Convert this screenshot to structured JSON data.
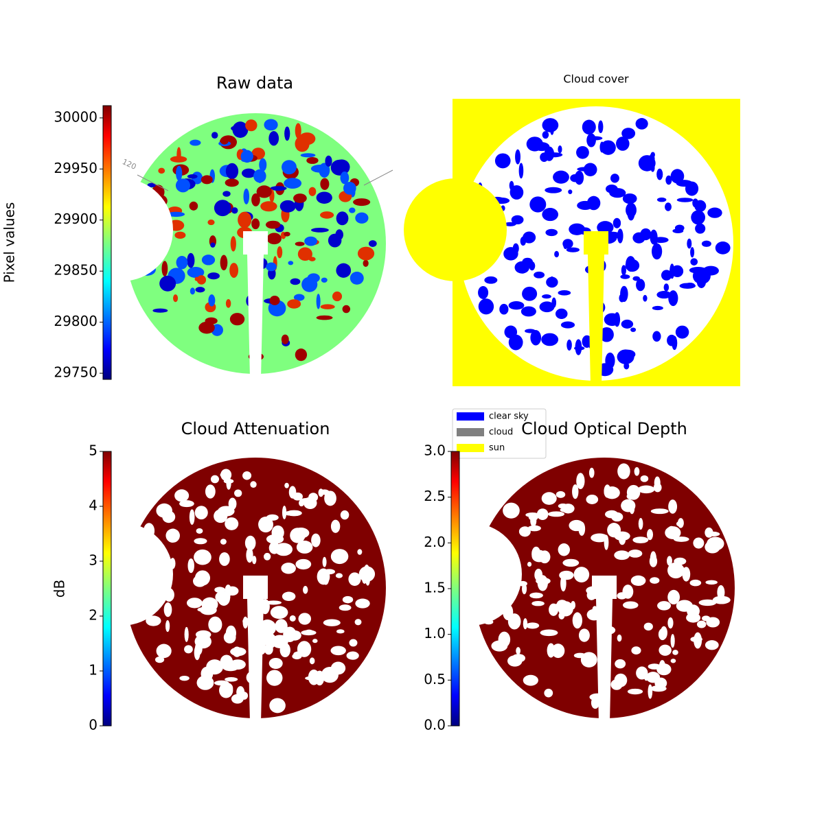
{
  "chart_data": [
    {
      "type": "image",
      "title": "Raw data",
      "colormap": "jet",
      "colorbar": {
        "label": "Pixel values",
        "lim": [
          29744,
          30012
        ],
        "ticks": [
          29750,
          29800,
          29850,
          29900,
          29950,
          30000
        ]
      },
      "annotation": "120"
    },
    {
      "type": "image",
      "title": "Cloud cover",
      "legend": [
        {
          "name": "clear sky",
          "color": "#0000ff"
        },
        {
          "name": "cloud",
          "color": "#808080"
        },
        {
          "name": "sun",
          "color": "#ffff00"
        }
      ]
    },
    {
      "type": "image",
      "title": "Cloud Attenuation",
      "colormap": "jet",
      "colorbar": {
        "label": "dB",
        "lim": [
          0,
          5
        ],
        "ticks": [
          0,
          1,
          2,
          3,
          4,
          5
        ]
      }
    },
    {
      "type": "image",
      "title": "Cloud Optical Depth",
      "colormap": "jet",
      "colorbar": {
        "lim": [
          0,
          3
        ],
        "ticks": [
          {
            "value": 0,
            "label": "0.0"
          },
          0.5,
          {
            "value": 1,
            "label": "1.0"
          },
          1.5,
          {
            "value": 2,
            "label": "2.0"
          },
          2.5,
          {
            "value": 3,
            "label": "3.0"
          }
        ]
      }
    }
  ]
}
